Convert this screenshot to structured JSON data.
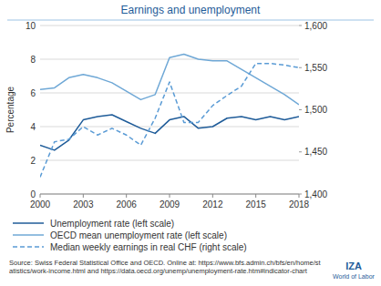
{
  "chart_data": {
    "type": "line",
    "title": "Earnings and unemployment",
    "y_label": "Percentage",
    "x": [
      2000,
      2001,
      2002,
      2003,
      2004,
      2005,
      2006,
      2007,
      2008,
      2009,
      2010,
      2011,
      2012,
      2013,
      2014,
      2015,
      2016,
      2017,
      2018
    ],
    "xlim": [
      2000,
      2018
    ],
    "xticks": [
      2000,
      2003,
      2006,
      2009,
      2012,
      2015,
      2018
    ],
    "ylim": [
      0,
      10
    ],
    "yticks": [
      0,
      2,
      4,
      6,
      8,
      10
    ],
    "y2lim": [
      1400,
      1600
    ],
    "y2ticks": [
      {
        "value": 1400,
        "label": "1,400"
      },
      {
        "value": 1450,
        "label": "1,450"
      },
      {
        "value": 1500,
        "label": "1,500"
      },
      {
        "value": 1550,
        "label": "1,550"
      },
      {
        "value": 1600,
        "label": "1,600"
      }
    ],
    "grid": true,
    "legend": "bottom",
    "series": [
      {
        "name": "Unemployment rate (left scale)",
        "color": "#1f5c99",
        "line_style": "solid",
        "values": [
          2.9,
          2.6,
          3.2,
          4.4,
          4.6,
          4.7,
          4.3,
          3.9,
          3.6,
          4.4,
          4.6,
          3.9,
          4.0,
          4.5,
          4.6,
          4.4,
          4.6,
          4.4,
          4.6
        ]
      },
      {
        "name": "OECD mean unemployment rate (left scale)",
        "color": "#6fa8d6",
        "line_style": "solid",
        "values": [
          6.2,
          6.3,
          6.9,
          7.1,
          6.9,
          6.6,
          6.1,
          5.6,
          5.9,
          8.1,
          8.3,
          8.0,
          7.9,
          7.9,
          7.4,
          6.9,
          6.4,
          5.9,
          5.3
        ]
      },
      {
        "name": "Median weekly earnings in real CHF (right scale)",
        "color": "#5a9bd5",
        "line_style": "dashed",
        "axis": "y2",
        "values": [
          1420,
          1462,
          1465,
          1480,
          1470,
          1478,
          1470,
          1458,
          1490,
          1533,
          1485,
          1485,
          1505,
          1517,
          1528,
          1555,
          1555,
          1553,
          1550
        ]
      }
    ],
    "source": "Source: Swiss Federal Statistical Office and OECD. Online at: https://www.bfs.admin.ch/bfs/en/home/statistics/work-income.html and https://data.oecd.org/unemp/unemployment-rate.htm#indicator-chart",
    "logo": [
      "IZA",
      "World of Labor"
    ]
  }
}
